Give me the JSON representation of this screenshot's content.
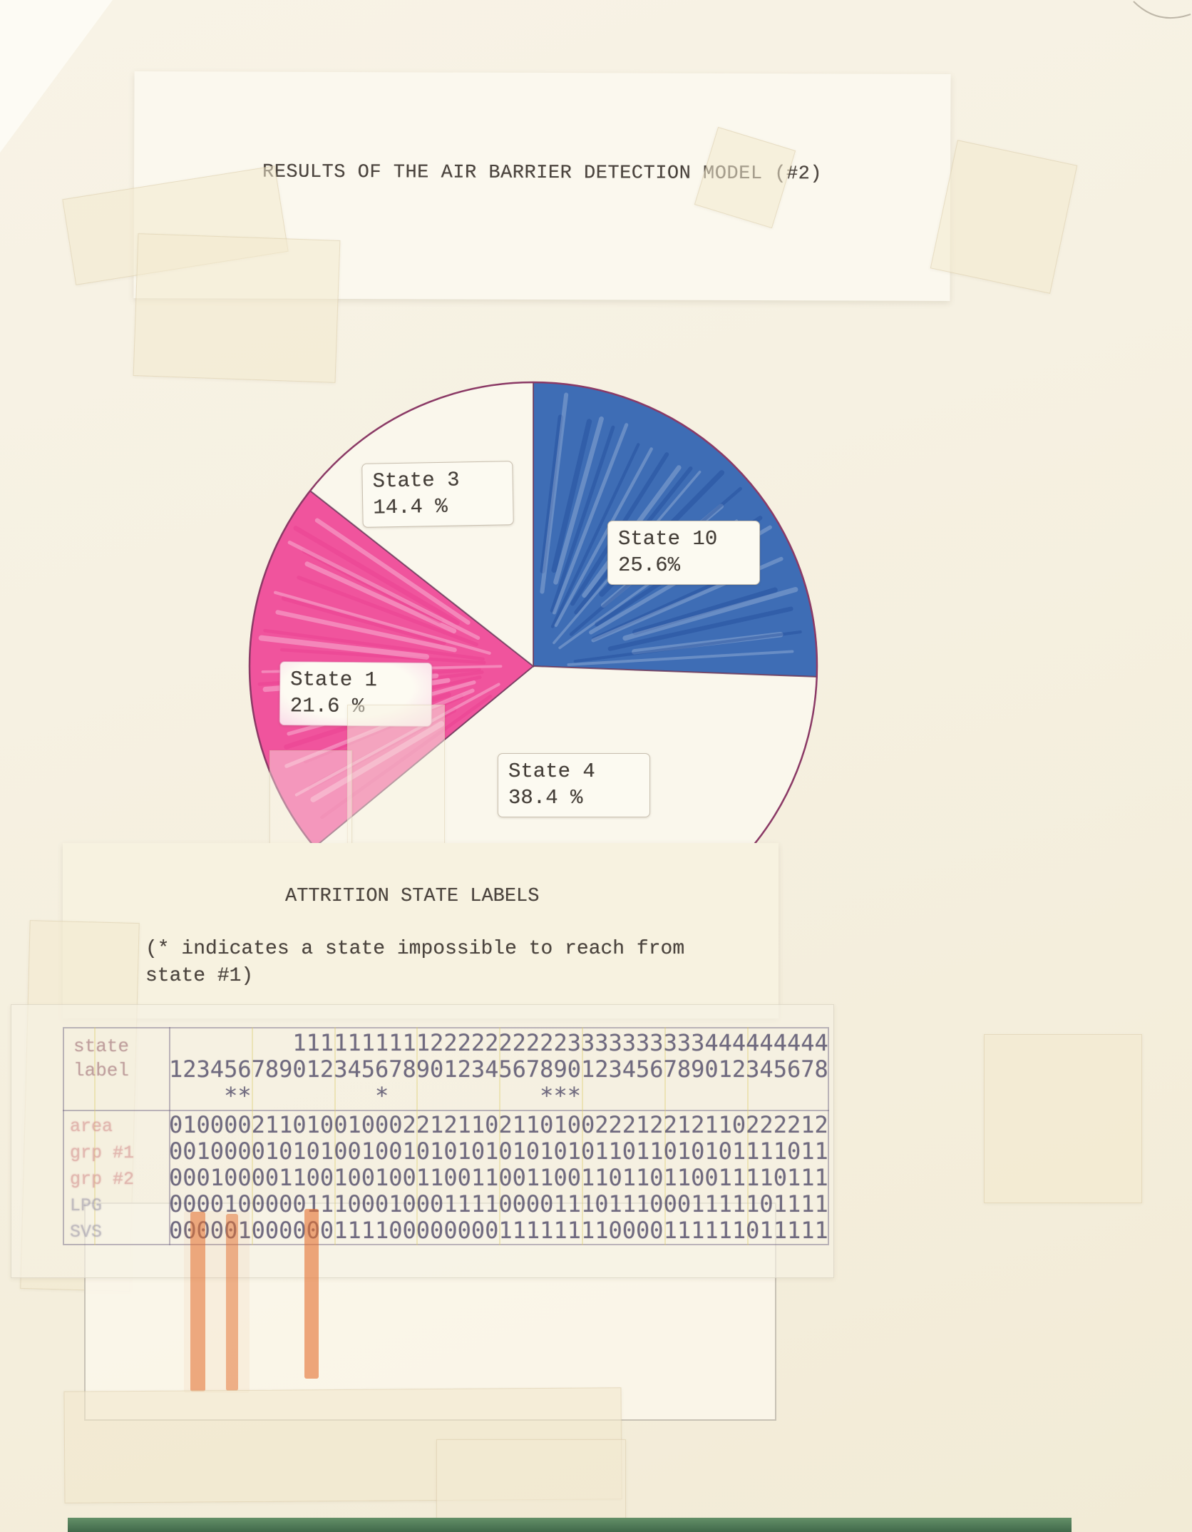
{
  "page": {
    "title": "RESULTS OF THE AIR BARRIER DETECTION MODEL (#2)"
  },
  "attrition": {
    "heading": "ATTRITION STATE LABELS",
    "note_line1": "(* indicates a state impossible to reach from",
    "note_line2": "state #1)"
  },
  "chart_data": {
    "type": "pie",
    "title": "RESULTS OF THE AIR BARRIER DETECTION MODEL (#2)",
    "start_angle_deg": 0,
    "direction": "clockwise",
    "outline_color": "#8b3a66",
    "slices": [
      {
        "label": "State 10",
        "pct_label": "25.6%",
        "value": 25.6,
        "color": "#3e6db5",
        "textured": true,
        "streaks": {
          "light": "rgba(255,255,255,0.22)",
          "dark": "rgba(28,72,150,0.38)"
        }
      },
      {
        "label": "State 4",
        "pct_label": "38.4 %",
        "value": 38.4,
        "color": "#faf7ec",
        "textured": false
      },
      {
        "label": "State 1",
        "pct_label": "21.6 %",
        "value": 21.6,
        "color": "#f0549d",
        "textured": true,
        "streaks": {
          "light": "rgba(255,255,255,0.30)",
          "dark": "rgba(232,58,140,0.35)"
        }
      },
      {
        "label": "State 3",
        "pct_label": "14.4 %",
        "value": 14.4,
        "color": "#faf7ec",
        "textured": false
      }
    ]
  },
  "table": {
    "corner_header_line1": "state",
    "corner_header_line2": "label",
    "header_tens": "         111111111122222222223333333333444444444",
    "header_units": "123456789012345678901234567890123456789012345678",
    "asterisk_row": "    **         *           ***",
    "rows": [
      {
        "label": "area",
        "label_color": "#cf8080",
        "bits": "010000211010010002212110211010022212212110222212"
      },
      {
        "label": "grp #1",
        "label_color": "#cf8080",
        "bits": "001000010101001001010101010101011011010101111011"
      },
      {
        "label": "grp #2",
        "label_color": "#cf8080",
        "bits": "000100001100100100110011001100110110110011110111"
      },
      {
        "label": "LPG",
        "label_color": "#8f8aa0",
        "bits": "000010000011100010001111000011101110001111101111"
      },
      {
        "label": "SVS",
        "label_color": "#8f8aa0",
        "bits": "000001000000111100000000111111110000111111011111"
      }
    ]
  },
  "colors": {
    "paper_background": "#f6f1e2",
    "top_sheet": "#fbf8ee",
    "typewriter_ink": "#4b443e",
    "table_ink": "#58526e",
    "highlight_orange": "#e4702f",
    "green_strip": "#4e7a55",
    "pie_outline": "#8b3a66",
    "pie_blue": "#3e6db5",
    "pie_pink": "#f0549d"
  }
}
